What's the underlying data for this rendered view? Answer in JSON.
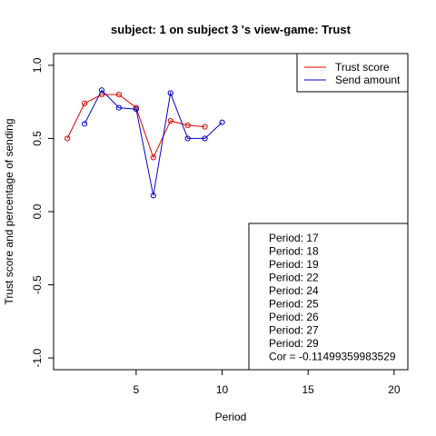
{
  "chart_data": {
    "type": "line",
    "title": "subject:  1  on subject  3 's view-game:  Trust",
    "xlabel": "Period",
    "ylabel": "Trust score and percentage of sending",
    "xlim": [
      0.2,
      20.8
    ],
    "ylim": [
      -1.08,
      1.08
    ],
    "x_ticks": [
      5,
      10,
      15,
      20
    ],
    "y_ticks": [
      -1.0,
      -0.5,
      0.0,
      0.5,
      1.0
    ],
    "y_tick_labels": [
      "-1.0",
      "-0.5",
      "0.0",
      "0.5",
      "1.0"
    ],
    "grid": false,
    "legend_position": "top-right",
    "series": [
      {
        "name": "Trust score",
        "color": "#dd0000",
        "x": [
          1,
          2,
          3,
          4,
          5,
          6,
          7,
          8,
          9
        ],
        "y": [
          0.5,
          0.74,
          0.8,
          0.8,
          0.71,
          0.37,
          0.62,
          0.59,
          0.58
        ]
      },
      {
        "name": "Send amount",
        "color": "#0000cc",
        "x": [
          2,
          3,
          4,
          5,
          6,
          7,
          8,
          9,
          10
        ],
        "y": [
          0.6,
          0.83,
          0.71,
          0.7,
          0.11,
          0.81,
          0.5,
          0.5,
          0.61
        ]
      }
    ],
    "info_box": {
      "position": "bottom-right",
      "lines": [
        "Period:  17",
        "Period:  18",
        "Period:  19",
        "Period:  22",
        "Period:  24",
        "Period:  25",
        "Period:  26",
        "Period:  27",
        "Period:  29",
        "Cor =  -0.11499359983529"
      ]
    }
  }
}
